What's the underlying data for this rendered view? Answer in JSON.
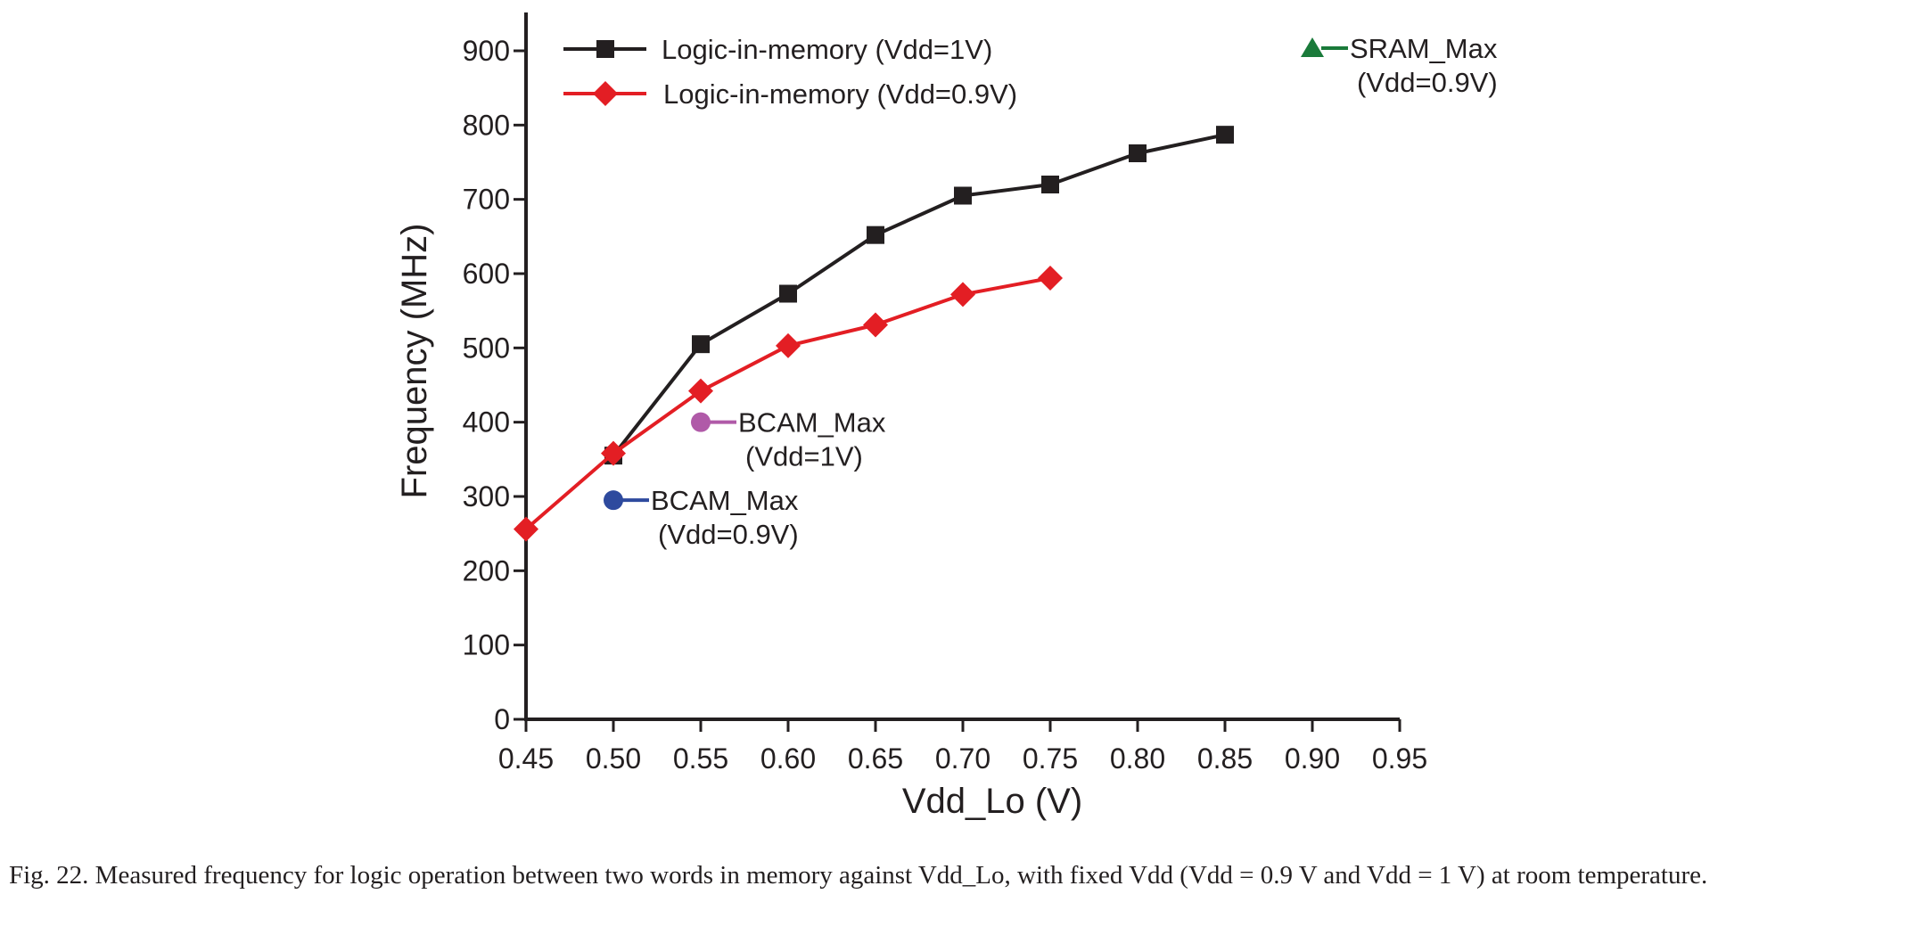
{
  "caption": "Fig. 22. Measured frequency for logic operation between two words in memory against Vdd_Lo, with fixed Vdd (Vdd = 0.9 V and Vdd = 1 V) at room temperature.",
  "chart_data": {
    "type": "line",
    "xlabel": "Vdd_Lo (V)",
    "ylabel": "Frequency (MHz)",
    "xlim": [
      0.45,
      0.95
    ],
    "ylim": [
      0,
      900
    ],
    "x_ticks": [
      "0.45",
      "0.50",
      "0.55",
      "0.60",
      "0.65",
      "0.70",
      "0.75",
      "0.80",
      "0.85",
      "0.90",
      "0.95"
    ],
    "y_ticks": [
      "0",
      "100",
      "200",
      "300",
      "400",
      "500",
      "600",
      "700",
      "800",
      "900"
    ],
    "grid": false,
    "legend_position": "top-left",
    "series": [
      {
        "name": "Logic-in-memory (Vdd=1V)",
        "color": "#231f20",
        "marker": "square",
        "x": [
          0.5,
          0.55,
          0.6,
          0.65,
          0.7,
          0.75,
          0.8,
          0.85
        ],
        "y": [
          355,
          505,
          573,
          652,
          705,
          720,
          762,
          787
        ]
      },
      {
        "name": "Logic-in-memory (Vdd=0.9V)",
        "color": "#e31e24",
        "marker": "diamond",
        "x": [
          0.45,
          0.5,
          0.55,
          0.6,
          0.65,
          0.7,
          0.75
        ],
        "y": [
          256,
          358,
          442,
          503,
          531,
          572,
          594
        ]
      }
    ],
    "annotations": [
      {
        "line1": "SRAM_Max",
        "line2": "(Vdd=0.9V)",
        "x": 0.9,
        "y": 900,
        "marker": "triangle",
        "color": "#1a7a3a"
      },
      {
        "line1": "BCAM_Max",
        "line2": "(Vdd=1V)",
        "x": 0.55,
        "y": 400,
        "marker": "circle",
        "color": "#b05aa8"
      },
      {
        "line1": "BCAM_Max",
        "line2": "(Vdd=0.9V)",
        "x": 0.5,
        "y": 295,
        "marker": "circle",
        "color": "#2e4a9e"
      }
    ]
  }
}
